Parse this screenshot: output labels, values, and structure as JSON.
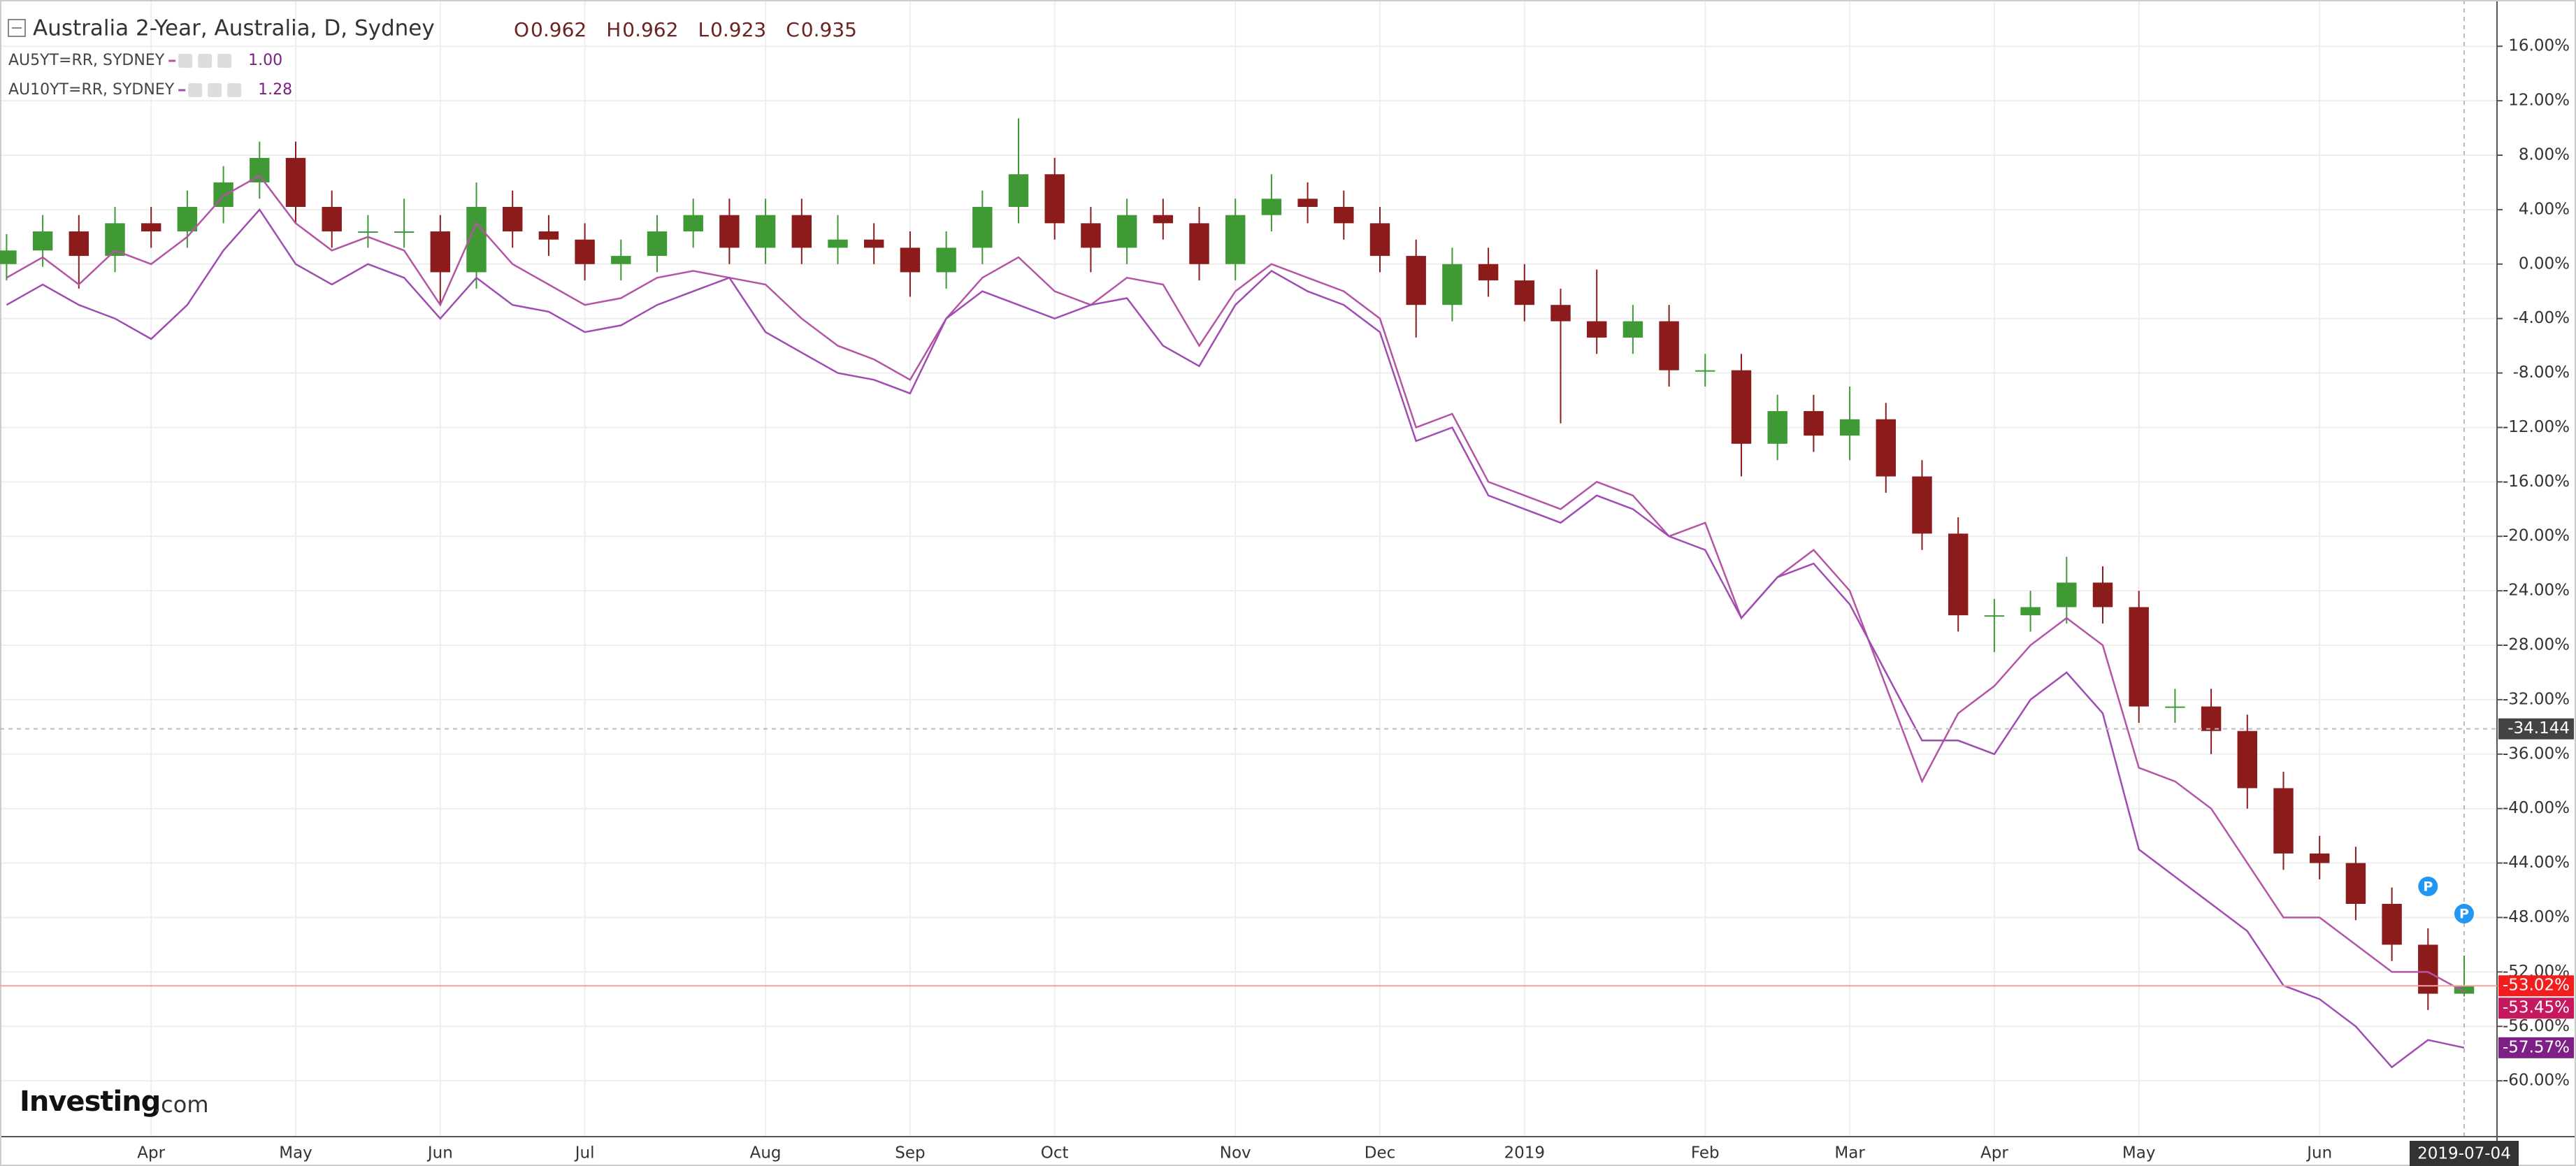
{
  "chart_data": {
    "type": "candlestick",
    "title": "Australia 2-Year, Australia, D, Sydney",
    "ohlc": [
      {
        "label": "O",
        "value": "0.962"
      },
      {
        "label": "H",
        "value": "0.962"
      },
      {
        "label": "L",
        "value": "0.923"
      },
      {
        "label": "C",
        "value": "0.935"
      }
    ],
    "categories": [
      null,
      null,
      null,
      null,
      "Apr",
      null,
      null,
      null,
      "May",
      null,
      null,
      null,
      "Jun",
      null,
      null,
      null,
      "Jul",
      null,
      null,
      null,
      null,
      "Aug",
      null,
      null,
      null,
      "Sep",
      null,
      null,
      null,
      "Oct",
      null,
      null,
      null,
      null,
      "Nov",
      null,
      null,
      null,
      "Dec",
      null,
      null,
      null,
      "2019",
      null,
      null,
      null,
      null,
      "Feb",
      null,
      null,
      null,
      "Mar",
      null,
      null,
      null,
      "Apr",
      null,
      null,
      null,
      "May",
      null,
      null,
      null,
      null,
      "Jun",
      null,
      null,
      null,
      "2019-07-04"
    ],
    "series": [
      {
        "kind": "candle",
        "up_color": "#3f9a36",
        "down_color": "#8c1c1c",
        "color": "#f41d1d",
        "last_label": "-53.02%",
        "open": [
          0,
          1,
          2.4,
          0.6,
          3,
          2.4,
          4.2,
          6,
          7.8,
          4.2,
          2.4,
          2.4,
          2.4,
          -0.6,
          4.2,
          2.4,
          1.8,
          0,
          0.6,
          2.4,
          3.6,
          1.2,
          3.6,
          1.2,
          1.8,
          1.2,
          -0.6,
          1.2,
          4.2,
          6.6,
          3,
          1.2,
          3.6,
          3,
          0,
          3.6,
          4.8,
          4.2,
          3,
          0.6,
          -3,
          0,
          -1.2,
          -3,
          -4.2,
          -5.4,
          -4.2,
          -7.8,
          -7.8,
          -13.2,
          -10.8,
          -12.6,
          -11.4,
          -15.6,
          -19.8,
          -25.8,
          -25.8,
          -25.2,
          -23.4,
          -25.2,
          -32.5,
          -32.5,
          -34.3,
          -38.5,
          -43.3,
          -44,
          -47,
          -50,
          -53.6
        ],
        "high": [
          2.2,
          3.6,
          3.6,
          4.2,
          4.2,
          5.4,
          7.2,
          9,
          9,
          5.4,
          3.6,
          4.8,
          3.6,
          6,
          5.4,
          3.6,
          3,
          1.8,
          3.6,
          4.8,
          4.8,
          4.8,
          4.8,
          3.6,
          3,
          2.4,
          2.4,
          5.4,
          10.7,
          7.8,
          4.2,
          4.8,
          4.8,
          4.2,
          4.8,
          6.6,
          6,
          5.4,
          4.2,
          1.8,
          1.2,
          1.2,
          0,
          -1.8,
          -0.4,
          -3,
          -3,
          -6.6,
          -6.6,
          -9.6,
          -9.6,
          -9,
          -10.2,
          -14.4,
          -18.6,
          -24.6,
          -24,
          -21.5,
          -22.2,
          -24,
          -31.2,
          -31.2,
          -33.1,
          -37.3,
          -42,
          -42.8,
          -45.8,
          -48.8,
          -50.8
        ],
        "low": [
          -1.2,
          -0.2,
          -1.8,
          -0.6,
          1.2,
          1.2,
          3,
          4.8,
          3,
          1.2,
          1.2,
          1.2,
          -3,
          -1.8,
          1.2,
          0.6,
          -1.2,
          -1.2,
          -0.6,
          1.2,
          0,
          0,
          0,
          0,
          0,
          -2.4,
          -1.8,
          0,
          3,
          1.8,
          -0.6,
          0,
          1.8,
          -1.2,
          -1.2,
          2.4,
          3,
          1.8,
          -0.6,
          -5.4,
          -4.2,
          -2.4,
          -4.2,
          -11.7,
          -6.6,
          -6.6,
          -9,
          -9,
          -15.6,
          -14.4,
          -13.8,
          -14.4,
          -16.8,
          -21,
          -27,
          -28.5,
          -27,
          -26.4,
          -26.4,
          -33.7,
          -33.7,
          -36,
          -40,
          -44.5,
          -45.2,
          -48.2,
          -51.2,
          -54.8,
          -53.8
        ],
        "close": [
          1,
          2.4,
          0.6,
          3,
          2.4,
          4.2,
          6,
          7.8,
          4.2,
          2.4,
          2.4,
          2.4,
          -0.6,
          4.2,
          2.4,
          1.8,
          0,
          0.6,
          2.4,
          3.6,
          1.2,
          3.6,
          1.2,
          1.8,
          1.2,
          -0.6,
          1.2,
          4.2,
          6.6,
          3,
          1.2,
          3.6,
          3,
          0,
          3.6,
          4.8,
          4.2,
          3,
          0.6,
          -3,
          0,
          -1.2,
          -3,
          -4.2,
          -5.4,
          -4.2,
          -7.8,
          -7.8,
          -13.2,
          -10.8,
          -12.6,
          -11.4,
          -15.6,
          -19.8,
          -25.8,
          -25.8,
          -25.2,
          -23.4,
          -25.2,
          -32.5,
          -32.5,
          -34.3,
          -38.5,
          -43.3,
          -44,
          -47,
          -50,
          -53.6,
          -53.02
        ]
      },
      {
        "kind": "line",
        "name": "AU5YT=RR, SYDNEY",
        "legend_value": "1.00",
        "color": "#b455a4",
        "tag_color": "#c6185e",
        "last_label": "-53.45%",
        "values": [
          -1,
          0.5,
          -1.5,
          1,
          0,
          2,
          5,
          6.5,
          3,
          1,
          2,
          1,
          -3,
          3,
          0,
          -1.5,
          -3,
          -2.5,
          -1,
          -0.5,
          -1,
          -1.5,
          -4,
          -6,
          -7,
          -8.5,
          -4,
          -1,
          0.5,
          -2,
          -3,
          -1,
          -1.5,
          -6,
          -2,
          0,
          -1,
          -2,
          -4,
          -12,
          -11,
          -16,
          -17,
          -18,
          -16,
          -17,
          -20,
          -19,
          -26,
          -23,
          -21,
          -24,
          -31,
          -38,
          -33,
          -31,
          -28,
          -26,
          -28,
          -37,
          -38,
          -40,
          -44,
          -48,
          -48,
          -50,
          -52,
          -52,
          -53.45
        ]
      },
      {
        "kind": "line",
        "name": "AU10YT=RR, SYDNEY",
        "legend_value": "1.28",
        "color": "#a04cb2",
        "tag_color": "#7e1f86",
        "last_label": "-57.57%",
        "values": [
          -3,
          -1.5,
          -3,
          -4,
          -5.5,
          -3,
          1,
          4,
          0,
          -1.5,
          0,
          -1,
          -4,
          -1,
          -3,
          -3.5,
          -5,
          -4.5,
          -3,
          -2,
          -1,
          -5,
          -6.5,
          -8,
          -8.5,
          -9.5,
          -4,
          -2,
          -3,
          -4,
          -3,
          -2.5,
          -6,
          -7.5,
          -3,
          -0.5,
          -2,
          -3,
          -5,
          -13,
          -12,
          -17,
          -18,
          -19,
          -17,
          -18,
          -20,
          -21,
          -26,
          -23,
          -22,
          -25,
          -30,
          -35,
          -35,
          -36,
          -32,
          -30,
          -33,
          -43,
          -45,
          -47,
          -49,
          -53,
          -54,
          -56,
          -59,
          -57,
          -57.57
        ]
      }
    ],
    "ylim": [
      -64.1,
      19.4
    ],
    "yticks": [
      {
        "value": 16,
        "label": "16.00%"
      },
      {
        "value": 12,
        "label": "12.00%"
      },
      {
        "value": 8,
        "label": "8.00%"
      },
      {
        "value": 4,
        "label": "4.00%"
      },
      {
        "value": 0,
        "label": "0.00%"
      },
      {
        "value": -4,
        "label": "-4.00%"
      },
      {
        "value": -8,
        "label": "-8.00%"
      },
      {
        "value": -12,
        "label": "-12.00%"
      },
      {
        "value": -16,
        "label": "-16.00%"
      },
      {
        "value": -20,
        "label": "-20.00%"
      },
      {
        "value": -24,
        "label": "-24.00%"
      },
      {
        "value": -28,
        "label": "-28.00%"
      },
      {
        "value": -32,
        "label": "-32.00%"
      },
      {
        "value": -36,
        "label": "-36.00%"
      },
      {
        "value": -40,
        "label": "-40.00%"
      },
      {
        "value": -44,
        "label": "-44.00%"
      },
      {
        "value": -48,
        "label": "-48.00%"
      },
      {
        "value": -52,
        "label": "-52.00%"
      },
      {
        "value": -56,
        "label": "-56.00%"
      },
      {
        "value": -60,
        "label": "-60.00%"
      }
    ],
    "grid": true,
    "crosshair": {
      "value": -34.144,
      "label": "-34.144"
    },
    "event_markers": [
      {
        "label": "P",
        "index": 67
      },
      {
        "label": "P",
        "index": 68
      }
    ],
    "logo": [
      "Investing",
      ".com"
    ]
  }
}
